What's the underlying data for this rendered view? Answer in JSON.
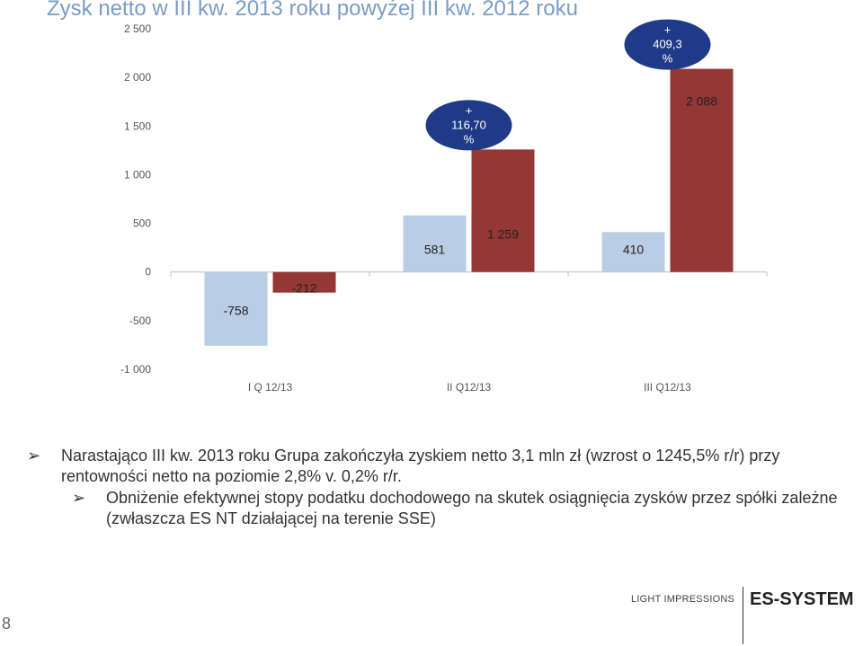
{
  "title": "Zysk netto w III kw. 2013 roku powyżej III kw. 2012 roku",
  "chart_data": {
    "type": "bar",
    "categories": [
      "I Q 12/13",
      "II Q12/13",
      "III Q12/13"
    ],
    "series": [
      {
        "values": [
          -758,
          581,
          410
        ],
        "labels": [
          "-758",
          "581",
          "410"
        ]
      },
      {
        "values": [
          -212,
          1259,
          2088
        ],
        "labels": [
          "-212",
          "1 259",
          "2 088"
        ]
      }
    ],
    "ylim": [
      -1000,
      2500
    ],
    "yticks": [
      2500,
      2000,
      1500,
      1000,
      500,
      0,
      -500,
      -1000
    ],
    "ytick_labels": [
      "2 500",
      "2 000",
      "1 500",
      "1 000",
      "500",
      "0",
      "-500",
      "-1 000"
    ],
    "grid": false,
    "annotations": [
      {
        "category_index": 1,
        "lines": [
          "+",
          "116,70",
          "%"
        ]
      },
      {
        "category_index": 2,
        "lines": [
          "+",
          "409,3",
          "%"
        ]
      }
    ],
    "colors": [
      "#b9cde5",
      "#953735"
    ],
    "badge_color": "#1f3b87"
  },
  "bullets": {
    "main": "Narastająco III kw. 2013 roku Grupa zakończyła zyskiem netto 3,1 mln zł (wzrost o 1245,5% r/r) przy rentowności netto na poziomie 2,8% v. 0,2% r/r.",
    "sub": "Obniżenie efektywnej stopy podatku dochodowego na skutek osiągnięcia zysków przez spółki zależne (zwłaszcza ES NT działającej na terenie SSE)",
    "marker": "➢"
  },
  "page_number": "8",
  "footer": {
    "tagline": "LIGHT IMPRESSIONS",
    "brand": "ES-SYSTEM"
  }
}
